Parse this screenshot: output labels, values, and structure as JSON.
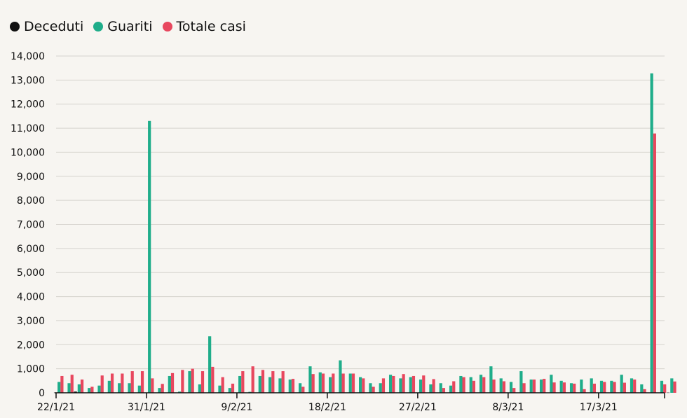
{
  "chart_data": {
    "type": "bar",
    "title": "",
    "xlabel": "",
    "ylabel": "",
    "ylim": [
      0,
      14000
    ],
    "yticks": [
      "0",
      "1,000",
      "2,000",
      "3,000",
      "4,000",
      "5,000",
      "6,000",
      "7,000",
      "8,000",
      "9,000",
      "10,000",
      "11,000",
      "12,000",
      "13,000",
      "14,000"
    ],
    "xtick_labels": [
      "22/1/21",
      "31/1/21",
      "9/2/21",
      "18/2/21",
      "27/2/21",
      "8/3/21",
      "17/3/21"
    ],
    "xtick_index": [
      0,
      9,
      18,
      27,
      36,
      45,
      54
    ],
    "grid": true,
    "legend_position": "top-left",
    "categories": [
      "22/1/21",
      "23/1/21",
      "24/1/21",
      "25/1/21",
      "26/1/21",
      "27/1/21",
      "28/1/21",
      "29/1/21",
      "30/1/21",
      "31/1/21",
      "1/2/21",
      "2/2/21",
      "3/2/21",
      "4/2/21",
      "5/2/21",
      "6/2/21",
      "7/2/21",
      "8/2/21",
      "9/2/21",
      "10/2/21",
      "11/2/21",
      "12/2/21",
      "13/2/21",
      "14/2/21",
      "15/2/21",
      "16/2/21",
      "17/2/21",
      "18/2/21",
      "19/2/21",
      "20/2/21",
      "21/2/21",
      "22/2/21",
      "23/2/21",
      "24/2/21",
      "25/2/21",
      "26/2/21",
      "27/2/21",
      "28/2/21",
      "1/3/21",
      "2/3/21",
      "3/3/21",
      "4/3/21",
      "5/3/21",
      "6/3/21",
      "7/3/21",
      "8/3/21",
      "9/3/21",
      "10/3/21",
      "11/3/21",
      "12/3/21",
      "13/3/21",
      "14/3/21",
      "15/3/21",
      "16/3/21",
      "17/3/21",
      "18/3/21",
      "19/3/21",
      "20/3/21",
      "21/3/21",
      "22/3/21",
      "23/3/21",
      "24/3/21"
    ],
    "series": [
      {
        "name": "Deceduti",
        "color": "#111111",
        "values": [
          10,
          10,
          50,
          10,
          10,
          10,
          10,
          10,
          10,
          10,
          10,
          10,
          10,
          10,
          10,
          10,
          10,
          10,
          10,
          10,
          10,
          10,
          10,
          10,
          10,
          10,
          10,
          10,
          10,
          10,
          10,
          10,
          10,
          10,
          10,
          10,
          10,
          10,
          10,
          10,
          10,
          10,
          10,
          10,
          10,
          10,
          10,
          10,
          10,
          10,
          10,
          10,
          10,
          10,
          10,
          10,
          10,
          10,
          10,
          10,
          10,
          10
        ]
      },
      {
        "name": "Guariti",
        "color": "#1fad8a",
        "values": [
          450,
          400,
          350,
          200,
          300,
          500,
          400,
          400,
          300,
          11300,
          200,
          700,
          50,
          900,
          350,
          2350,
          300,
          200,
          700,
          40,
          700,
          650,
          600,
          550,
          400,
          1100,
          850,
          650,
          1350,
          800,
          650,
          400,
          400,
          750,
          600,
          650,
          550,
          350,
          400,
          300,
          700,
          650,
          750,
          1100,
          600,
          450,
          900,
          550,
          550,
          750,
          500,
          400,
          550,
          600,
          500,
          500,
          750,
          600,
          350,
          13280,
          500,
          600
        ]
      },
      {
        "name": "Totale casi",
        "color": "#e8475e",
        "values": [
          700,
          750,
          550,
          250,
          720,
          800,
          800,
          900,
          900,
          600,
          370,
          820,
          950,
          1000,
          900,
          1080,
          650,
          380,
          900,
          1100,
          950,
          900,
          900,
          580,
          250,
          780,
          800,
          800,
          800,
          800,
          600,
          250,
          600,
          700,
          780,
          700,
          720,
          570,
          200,
          480,
          650,
          500,
          650,
          550,
          480,
          200,
          400,
          550,
          580,
          430,
          430,
          380,
          150,
          380,
          450,
          450,
          420,
          550,
          150,
          10780,
          350,
          470
        ]
      }
    ]
  }
}
